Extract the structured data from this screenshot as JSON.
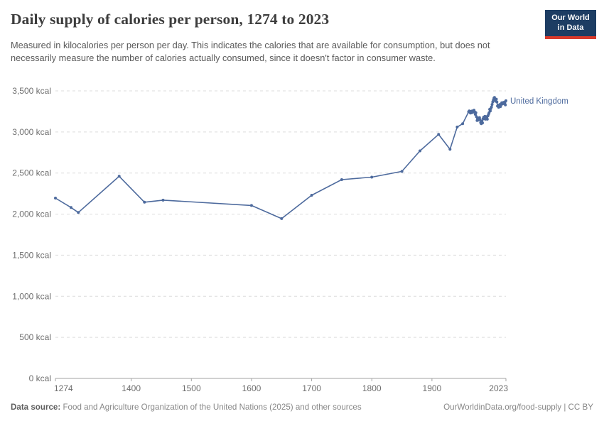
{
  "header": {
    "title": "Daily supply of calories per person, 1274 to 2023",
    "subtitle": "Measured in kilocalories per person per day. This indicates the calories that are available for consumption, but does not necessarily measure the number of calories actually consumed, since it doesn't factor in consumer waste."
  },
  "logo": {
    "line1": "Our World",
    "line2": "in Data",
    "bg_color": "#1d3d63",
    "accent_color": "#d93a2b"
  },
  "footer": {
    "source_label": "Data source:",
    "source_text": "Food and Agriculture Organization of the United Nations (2025) and other sources",
    "link": "OurWorldinData.org/food-supply | CC BY"
  },
  "chart_data": {
    "type": "line",
    "title": "Daily supply of calories per person, 1274 to 2023",
    "xlabel": "",
    "ylabel": "",
    "xlim": [
      1274,
      2023
    ],
    "ylim": [
      0,
      3500
    ],
    "grid": "horizontal-dashed",
    "legend_position": "end-of-line-label",
    "x_ticks": [
      {
        "value": 1274,
        "label": "1274"
      },
      {
        "value": 1400,
        "label": "1400"
      },
      {
        "value": 1500,
        "label": "1500"
      },
      {
        "value": 1600,
        "label": "1600"
      },
      {
        "value": 1700,
        "label": "1700"
      },
      {
        "value": 1800,
        "label": "1800"
      },
      {
        "value": 1900,
        "label": "1900"
      },
      {
        "value": 2023,
        "label": "2023"
      }
    ],
    "y_ticks": [
      {
        "value": 0,
        "label": "0 kcal"
      },
      {
        "value": 500,
        "label": "500 kcal"
      },
      {
        "value": 1000,
        "label": "1,000 kcal"
      },
      {
        "value": 1500,
        "label": "1,500 kcal"
      },
      {
        "value": 2000,
        "label": "2,000 kcal"
      },
      {
        "value": 2500,
        "label": "2,500 kcal"
      },
      {
        "value": 3000,
        "label": "3,000 kcal"
      },
      {
        "value": 3500,
        "label": "3,500 kcal"
      }
    ],
    "series": [
      {
        "name": "United Kingdom",
        "color": "#4d6a9d",
        "points": [
          [
            1274,
            2195
          ],
          [
            1300,
            2080
          ],
          [
            1312,
            2020
          ],
          [
            1380,
            2460
          ],
          [
            1422,
            2145
          ],
          [
            1453,
            2170
          ],
          [
            1600,
            2105
          ],
          [
            1650,
            1945
          ],
          [
            1700,
            2230
          ],
          [
            1750,
            2420
          ],
          [
            1800,
            2450
          ],
          [
            1850,
            2520
          ],
          [
            1880,
            2770
          ],
          [
            1911,
            2970
          ],
          [
            1930,
            2790
          ],
          [
            1942,
            3060
          ],
          [
            1951,
            3100
          ],
          [
            1961,
            3245
          ],
          [
            1962,
            3255
          ],
          [
            1963,
            3240
          ],
          [
            1964,
            3230
          ],
          [
            1965,
            3250
          ],
          [
            1966,
            3235
          ],
          [
            1967,
            3255
          ],
          [
            1968,
            3240
          ],
          [
            1969,
            3255
          ],
          [
            1970,
            3265
          ],
          [
            1971,
            3245
          ],
          [
            1972,
            3215
          ],
          [
            1973,
            3235
          ],
          [
            1974,
            3185
          ],
          [
            1975,
            3140
          ],
          [
            1976,
            3165
          ],
          [
            1977,
            3145
          ],
          [
            1978,
            3170
          ],
          [
            1979,
            3175
          ],
          [
            1980,
            3150
          ],
          [
            1981,
            3115
          ],
          [
            1982,
            3100
          ],
          [
            1983,
            3130
          ],
          [
            1984,
            3110
          ],
          [
            1985,
            3160
          ],
          [
            1986,
            3180
          ],
          [
            1987,
            3160
          ],
          [
            1988,
            3190
          ],
          [
            1989,
            3155
          ],
          [
            1990,
            3185
          ],
          [
            1991,
            3165
          ],
          [
            1992,
            3155
          ],
          [
            1993,
            3195
          ],
          [
            1994,
            3215
          ],
          [
            1995,
            3235
          ],
          [
            1996,
            3275
          ],
          [
            1997,
            3255
          ],
          [
            1998,
            3285
          ],
          [
            1999,
            3305
          ],
          [
            2000,
            3335
          ],
          [
            2001,
            3365
          ],
          [
            2002,
            3385
          ],
          [
            2003,
            3410
          ],
          [
            2004,
            3420
          ],
          [
            2005,
            3395
          ],
          [
            2006,
            3375
          ],
          [
            2007,
            3400
          ],
          [
            2008,
            3365
          ],
          [
            2009,
            3315
          ],
          [
            2010,
            3325
          ],
          [
            2011,
            3300
          ],
          [
            2012,
            3315
          ],
          [
            2013,
            3335
          ],
          [
            2014,
            3310
          ],
          [
            2015,
            3335
          ],
          [
            2016,
            3355
          ],
          [
            2017,
            3340
          ],
          [
            2018,
            3350
          ],
          [
            2019,
            3360
          ],
          [
            2020,
            3345
          ],
          [
            2021,
            3365
          ],
          [
            2022,
            3330
          ],
          [
            2023,
            3380
          ]
        ]
      }
    ]
  }
}
